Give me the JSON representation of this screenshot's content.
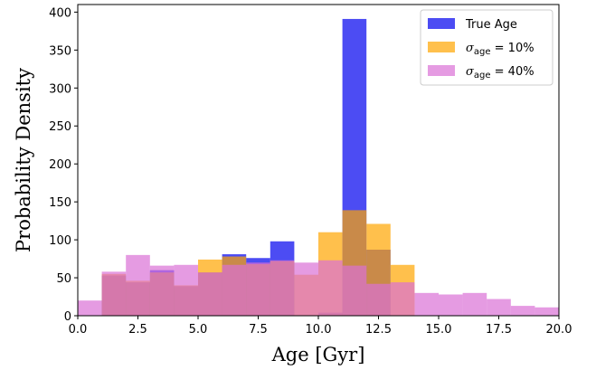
{
  "chart_data": {
    "type": "bar",
    "title": "",
    "xlabel": "Age [Gyr]",
    "ylabel": "Probability Density",
    "xlim": [
      0,
      20
    ],
    "ylim": [
      0,
      410
    ],
    "xticks": [
      0,
      2.5,
      5,
      7.5,
      10,
      12.5,
      15,
      17.5,
      20
    ],
    "xtick_labels": [
      "0.0",
      "2.5",
      "5.0",
      "7.5",
      "10.0",
      "12.5",
      "15.0",
      "17.5",
      "20.0"
    ],
    "yticks": [
      0,
      50,
      100,
      150,
      200,
      250,
      300,
      350,
      400
    ],
    "ytick_labels": [
      "0",
      "50",
      "100",
      "150",
      "200",
      "250",
      "300",
      "350",
      "400"
    ],
    "bin_edges": [
      0,
      1,
      2,
      3,
      4,
      5,
      6,
      7,
      8,
      9,
      10,
      11,
      12,
      13,
      14,
      15,
      16,
      17,
      18,
      19,
      20
    ],
    "legend_position": "top-right",
    "grid": false,
    "series": [
      {
        "name": "True Age",
        "label_parts": {
          "main": "True Age"
        },
        "color": "#0000ee",
        "alpha": 0.7,
        "values": [
          0,
          53,
          44,
          60,
          39,
          57,
          81,
          76,
          98,
          0,
          4,
          391,
          87,
          0,
          0,
          0,
          0,
          0,
          0,
          0
        ]
      },
      {
        "name": "σage = 10%",
        "label_parts": {
          "sym": "σ",
          "sub": "age",
          "rest": " = 10%"
        },
        "color": "#ffa500",
        "alpha": 0.7,
        "values": [
          0,
          55,
          46,
          57,
          40,
          74,
          78,
          68,
          72,
          54,
          110,
          139,
          121,
          67,
          0,
          0,
          0,
          0,
          0,
          0
        ]
      },
      {
        "name": "σage = 40%",
        "label_parts": {
          "sym": "σ",
          "sub": "age",
          "rest": " = 40%"
        },
        "color": "#da70d6",
        "alpha": 0.7,
        "values": [
          20,
          58,
          80,
          66,
          67,
          57,
          67,
          70,
          73,
          70,
          73,
          66,
          42,
          44,
          30,
          28,
          30,
          22,
          13,
          11
        ]
      }
    ]
  }
}
